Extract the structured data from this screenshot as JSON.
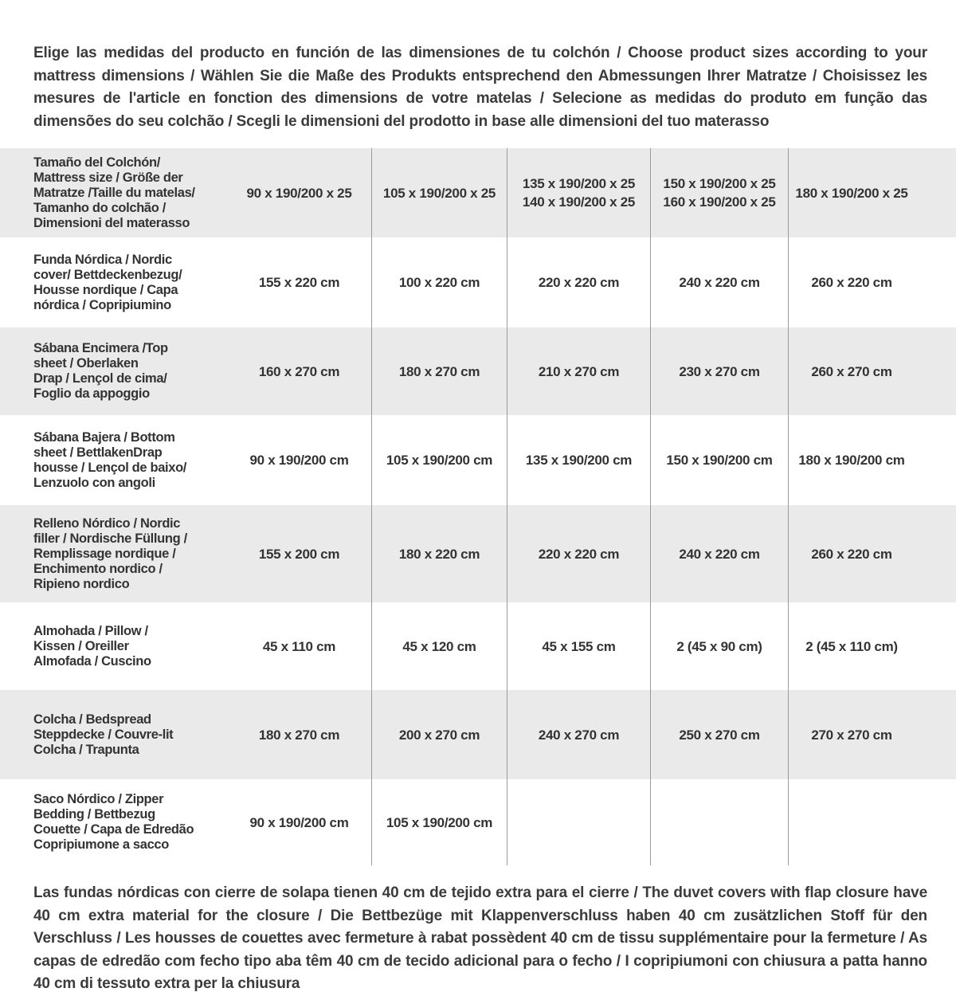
{
  "page": {
    "intro": "Elige las medidas del producto en función de las dimensiones de tu colchón / Choose product sizes according to your mattress dimensions / Wählen Sie die Maße des Produkts entsprechend den Abmessungen Ihrer Matratze / Choisissez les mesures de l'article en fonction des dimensions de votre matelas / Selecione as medidas do produto em função das dimensões do seu colchão / Scegli le dimensioni del prodotto in base alle dimensioni del tuo materasso",
    "footnote": "Las fundas nórdicas con cierre de solapa tienen 40 cm de tejido extra para el cierre  / The duvet covers with flap closure have 40 cm extra material for the closure / Die Bettbezüge mit Klappenverschluss haben 40 cm zusätzlichen Stoff für den Verschluss / Les housses de couettes avec fermeture à rabat possèdent 40 cm de tissu supplémentaire pour la fermeture / As capas de edredão com fecho tipo aba têm 40 cm de tecido adicional para o fecho / I copripiumoni con chiusura a patta hanno 40 cm di tessuto extra per la chiusura"
  },
  "colors": {
    "row_band": "#eaeaea",
    "divider": "#9b9b9b",
    "text": "#3b3b3b"
  },
  "table": {
    "rows": [
      {
        "label": "Tamaño del Colchón/\nMattress size / Größe der\nMatratze /Taille du matelas/\nTamanho do colchão /\nDimensioni del materasso",
        "values": [
          "90 x 190/200 x 25",
          "105 x 190/200 x 25",
          "135 x 190/200 x 25\n140 x 190/200 x 25",
          "150 x 190/200 x 25\n160 x 190/200 x 25",
          "180 x 190/200 x 25"
        ]
      },
      {
        "label": "Funda Nórdica /  Nordic\ncover/ Bettdeckenbezug/\nHousse nordique  / Capa\nnórdica / Copripiumino",
        "values": [
          "155 x 220 cm",
          "100 x 220 cm",
          "220 x 220 cm",
          "240 x 220 cm",
          "260 x 220 cm"
        ]
      },
      {
        "label": "Sábana Encimera /Top\nsheet / Oberlaken\nDrap / Lençol de cima/\nFoglio da appoggio",
        "values": [
          "160 x 270 cm",
          "180 x 270 cm",
          "210 x 270 cm",
          "230 x 270 cm",
          "260 x 270 cm"
        ]
      },
      {
        "label": "Sábana Bajera / Bottom\nsheet / BettlakenDrap\nhousse / Lençol de baixo/\nLenzuolo con angoli",
        "values": [
          "90 x 190/200 cm",
          "105 x 190/200 cm",
          "135 x 190/200 cm",
          "150 x 190/200 cm",
          "180 x 190/200 cm"
        ]
      },
      {
        "label": "Relleno Nórdico / Nordic\nfiller / Nordische Füllung /\nRemplissage nordique /\nEnchimento nordico /\nRipieno nordico",
        "values": [
          "155 x 200 cm",
          "180 x 220 cm",
          "220 x 220 cm",
          "240 x 220 cm",
          "260 x 220 cm"
        ]
      },
      {
        "label": "Almohada  / Pillow /\nKissen / Oreiller\nAlmofada / Cuscino",
        "values": [
          "45 x 110 cm",
          "45 x 120 cm",
          "45 x 155 cm",
          "2 (45 x 90 cm)",
          "2 (45 x 110 cm)"
        ]
      },
      {
        "label": "Colcha / Bedspread\nSteppdecke / Couvre-lit\nColcha / Trapunta",
        "values": [
          "180 x 270 cm",
          "200 x 270 cm",
          "240 x 270 cm",
          "250 x 270 cm",
          "270 x 270 cm"
        ]
      },
      {
        "label": "Saco Nórdico / Zipper\nBedding / Bettbezug\nCouette  / Capa de Edredão\nCopripiumone a sacco",
        "values": [
          "90 x 190/200 cm",
          "105 x 190/200 cm",
          "",
          "",
          ""
        ]
      }
    ]
  }
}
